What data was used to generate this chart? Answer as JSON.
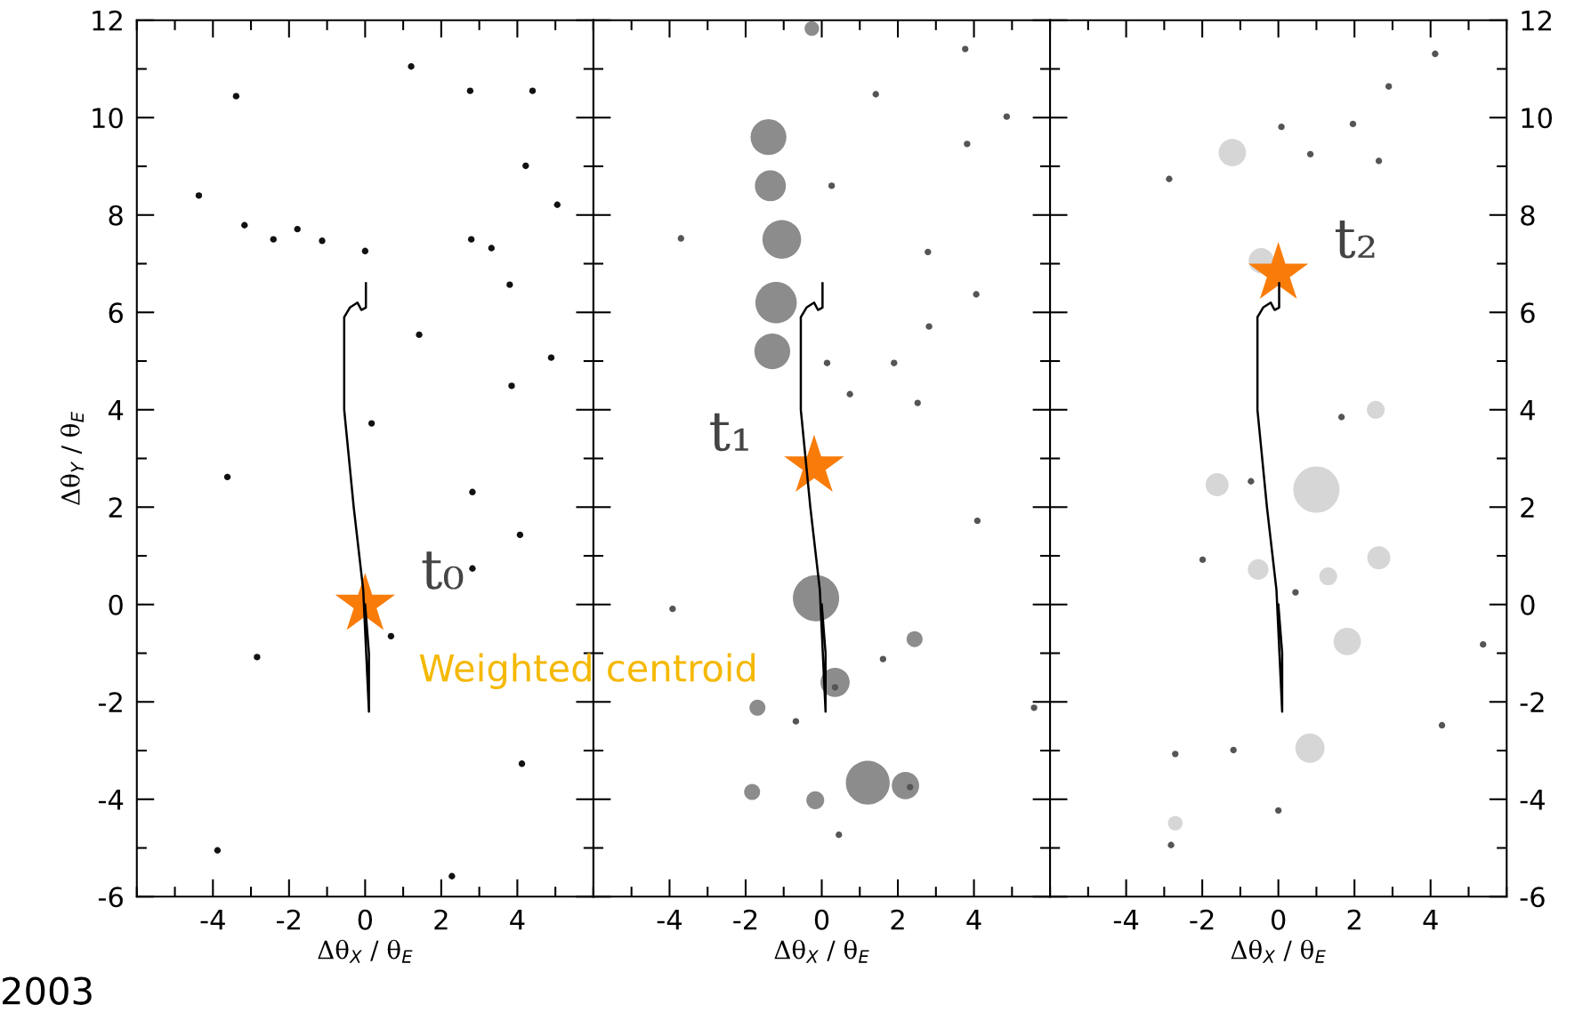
{
  "chart_data": [
    {
      "type": "scatter",
      "xlabel": "Δθ$_{X}$ / θ$_{E}$",
      "ylabel": "Δθ$_{Y}$ / θ$_{E}$",
      "xlim": [
        -6,
        6
      ],
      "ylim": [
        -6,
        12
      ],
      "xticks": [
        -4,
        -2,
        0,
        2,
        4
      ],
      "yticks": [
        -6,
        -4,
        -2,
        0,
        2,
        4,
        6,
        8,
        10,
        12
      ],
      "series": [
        {
          "color": "#111111",
          "marker": "circle",
          "x": [
            1.21,
            -3.39,
            2.76,
            4.4,
            4.22,
            -4.37,
            5.05,
            -3.17,
            -2.41,
            -1.78,
            -1.13,
            0.0,
            2.79,
            3.32,
            3.8,
            1.42,
            4.89,
            3.85,
            0.17,
            -3.62,
            2.82,
            4.07,
            2.82,
            0.68,
            -2.84,
            4.12,
            -3.88,
            2.28
          ],
          "values": [
            11.05,
            10.44,
            10.55,
            10.55,
            9.01,
            8.4,
            8.21,
            7.79,
            7.5,
            7.71,
            7.47,
            7.26,
            7.5,
            7.32,
            6.57,
            5.54,
            5.07,
            4.49,
            3.72,
            2.62,
            2.31,
            1.43,
            0.74,
            -0.65,
            -1.08,
            -3.27,
            -5.05,
            -5.58
          ]
        },
        {
          "type": "line",
          "color": "#000000",
          "line_style": "solid",
          "x": [
            0.02,
            0.02,
            -0.1,
            -0.2,
            -0.4,
            -0.55,
            -0.55,
            -0.3,
            -0.05,
            0.1,
            0.1,
            0.0
          ],
          "values": [
            6.6,
            6.1,
            6.05,
            6.2,
            6.1,
            5.9,
            4.0,
            2.0,
            0.3,
            -2.2,
            -1.0,
            0.0
          ]
        },
        {
          "color": "#f97c0a",
          "marker": "star",
          "x": [
            0.0
          ],
          "values": [
            0.0
          ]
        }
      ],
      "annotations": [
        "t₀",
        "Weighted centroid",
        "2003"
      ]
    },
    {
      "type": "scatter",
      "xlabel": "Δθ$_{X}$ / θ$_{E}$",
      "xlim": [
        -6,
        6
      ],
      "ylim": [
        -6,
        12
      ],
      "tick_labels": "x",
      "xticks": [
        -4,
        -2,
        0,
        2,
        4
      ],
      "yticks": [
        -6,
        -4,
        -2,
        0,
        2,
        4,
        6,
        8,
        10,
        12
      ],
      "series": [
        {
          "type": "bubble",
          "color": "#8c8c8c",
          "x": [
            -1.4,
            -1.35,
            -1.05,
            -1.2,
            -1.3,
            -0.15,
            0.35,
            1.21,
            2.2,
            -0.26,
            -1.69,
            -1.83,
            -0.17,
            2.44
          ],
          "values": [
            9.6,
            8.6,
            7.5,
            6.2,
            5.2,
            0.13,
            -1.6,
            -3.66,
            -3.72,
            11.83,
            -2.12,
            -3.85,
            -4.02,
            -0.71
          ],
          "sizes": [
            0.6,
            0.45,
            0.7,
            0.8,
            0.6,
            1.0,
            0.4,
            0.9,
            0.35,
            0.1,
            0.12,
            0.12,
            0.15,
            0.12
          ]
        },
        {
          "color": "#555555",
          "marker": "circle",
          "x": [
            3.77,
            1.42,
            4.86,
            3.82,
            0.26,
            -3.7,
            2.79,
            4.06,
            2.82,
            0.14,
            1.9,
            0.74,
            2.52,
            4.09,
            -3.92,
            1.61,
            -0.68,
            0.35,
            2.32,
            0.45,
            5.58
          ],
          "values": [
            11.41,
            10.48,
            10.02,
            9.46,
            8.6,
            7.52,
            7.24,
            6.37,
            5.71,
            4.96,
            4.96,
            4.32,
            4.14,
            1.72,
            -0.09,
            -1.12,
            -2.4,
            -1.7,
            -3.75,
            -4.73,
            -2.12
          ]
        },
        {
          "type": "line",
          "color": "#000000",
          "line_style": "solid",
          "x": [
            0.02,
            0.02,
            -0.1,
            -0.2,
            -0.4,
            -0.55,
            -0.55,
            -0.3,
            -0.05,
            0.1,
            0.1,
            0.0
          ],
          "values": [
            6.6,
            6.1,
            6.05,
            6.2,
            6.1,
            5.9,
            4.0,
            2.0,
            0.3,
            -2.2,
            -1.0,
            0.0
          ]
        },
        {
          "color": "#f97c0a",
          "marker": "star",
          "x": [
            -0.2
          ],
          "values": [
            2.84
          ]
        }
      ],
      "annotations": [
        "t₁"
      ]
    },
    {
      "type": "scatter",
      "xlabel": "Δθ$_{X}$ / θ$_{E}$",
      "xlim": [
        -6,
        6
      ],
      "ylim": [
        -6,
        12
      ],
      "xticks": [
        -4,
        -2,
        0,
        2,
        4
      ],
      "yticks": [
        -6,
        -4,
        -2,
        0,
        2,
        4,
        6,
        8,
        10,
        12
      ],
      "series": [
        {
          "type": "bubble",
          "color": "#d6d6d6",
          "x": [
            -1.21,
            1.0,
            -1.61,
            2.64,
            -0.53,
            1.31,
            1.81,
            0.83,
            2.56,
            -0.45,
            -2.71
          ],
          "values": [
            9.28,
            2.36,
            2.46,
            0.96,
            0.72,
            0.58,
            -0.76,
            -2.95,
            4.0,
            7.06,
            -4.49
          ],
          "sizes": [
            0.35,
            1.0,
            0.25,
            0.25,
            0.2,
            0.15,
            0.35,
            0.4,
            0.15,
            0.3,
            0.1
          ]
        },
        {
          "color": "#555555",
          "marker": "circle",
          "x": [
            -2.87,
            0.08,
            0.84,
            1.96,
            2.64,
            2.9,
            4.12,
            -1.99,
            -0.72,
            0.45,
            1.66,
            5.38,
            4.3,
            -2.71,
            -1.18,
            0.0,
            -2.82
          ],
          "values": [
            8.74,
            9.81,
            9.25,
            9.87,
            9.11,
            10.64,
            11.31,
            0.92,
            2.53,
            0.25,
            3.85,
            -0.82,
            -2.48,
            -3.07,
            -2.99,
            -4.23,
            -4.94
          ]
        },
        {
          "type": "line",
          "color": "#000000",
          "line_style": "solid",
          "x": [
            0.02,
            0.02,
            -0.1,
            -0.2,
            -0.4,
            -0.55,
            -0.55,
            -0.3,
            -0.05,
            0.1,
            0.1,
            0.0
          ],
          "values": [
            6.6,
            6.1,
            6.05,
            6.2,
            6.1,
            5.9,
            4.0,
            2.0,
            0.3,
            -2.2,
            -1.0,
            0.0
          ]
        },
        {
          "color": "#f97c0a",
          "marker": "star",
          "x": [
            0.0
          ],
          "values": [
            6.8
          ]
        }
      ],
      "annotations": [
        "t₂"
      ]
    }
  ]
}
